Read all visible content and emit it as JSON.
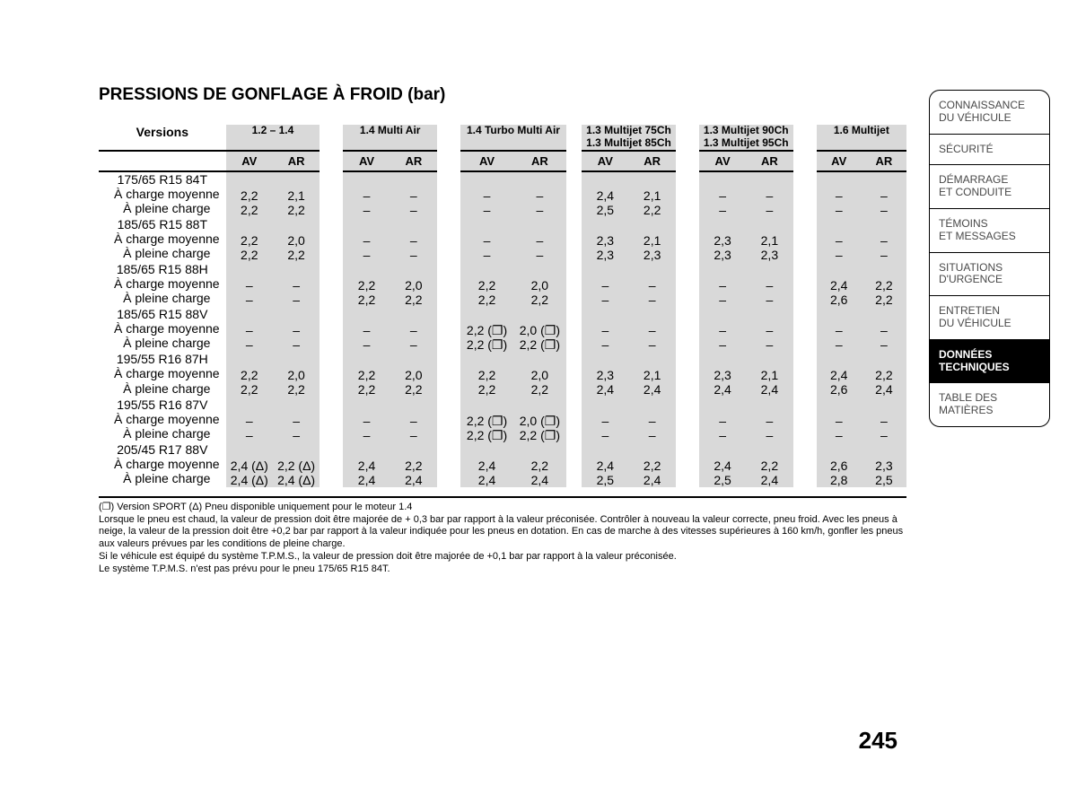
{
  "title": "PRESSIONS DE GONFLAGE À FROID (bar)",
  "versions_label": "Versions",
  "av_label": "AV",
  "ar_label": "AR",
  "engines": [
    {
      "label": "1.2 – 1.4",
      "sub": ""
    },
    {
      "label": "1.4 Multi Air",
      "sub": ""
    },
    {
      "label": "1.4 Turbo Multi Air",
      "sub": ""
    },
    {
      "label": "1.3 Multijet 75Ch",
      "sub": "1.3 Multijet 85Ch"
    },
    {
      "label": "1.3 Multijet 90Ch",
      "sub": "1.3 Multijet 95Ch"
    },
    {
      "label": "1.6 Multijet",
      "sub": ""
    }
  ],
  "row_sublabels": {
    "moy": "À charge moyenne",
    "pleine": "À pleine charge"
  },
  "tyres": [
    {
      "size": "175/65 R15 84T",
      "moy": [
        "2,2",
        "2,1",
        "–",
        "–",
        "–",
        "–",
        "2,4",
        "2,1",
        "–",
        "–",
        "–",
        "–"
      ],
      "pln": [
        "2,2",
        "2,2",
        "–",
        "–",
        "–",
        "–",
        "2,5",
        "2,2",
        "–",
        "–",
        "–",
        "–"
      ]
    },
    {
      "size": "185/65 R15 88T",
      "moy": [
        "2,2",
        "2,0",
        "–",
        "–",
        "–",
        "–",
        "2,3",
        "2,1",
        "2,3",
        "2,1",
        "–",
        "–"
      ],
      "pln": [
        "2,2",
        "2,2",
        "–",
        "–",
        "–",
        "–",
        "2,3",
        "2,3",
        "2,3",
        "2,3",
        "–",
        "–"
      ]
    },
    {
      "size": "185/65 R15 88H",
      "moy": [
        "–",
        "–",
        "2,2",
        "2,0",
        "2,2",
        "2,0",
        "–",
        "–",
        "–",
        "–",
        "2,4",
        "2,2"
      ],
      "pln": [
        "–",
        "–",
        "2,2",
        "2,2",
        "2,2",
        "2,2",
        "–",
        "–",
        "–",
        "–",
        "2,6",
        "2,2"
      ]
    },
    {
      "size": "185/65 R15 88V",
      "moy": [
        "–",
        "–",
        "–",
        "–",
        "2,2 (❐)",
        "2,0 (❐)",
        "–",
        "–",
        "–",
        "–",
        "–",
        "–"
      ],
      "pln": [
        "–",
        "–",
        "–",
        "–",
        "2,2 (❐)",
        "2,2 (❐)",
        "–",
        "–",
        "–",
        "–",
        "–",
        "–"
      ]
    },
    {
      "size": "195/55 R16 87H",
      "moy": [
        "2,2",
        "2,0",
        "2,2",
        "2,0",
        "2,2",
        "2,0",
        "2,3",
        "2,1",
        "2,3",
        "2,1",
        "2,4",
        "2,2"
      ],
      "pln": [
        "2,2",
        "2,2",
        "2,2",
        "2,2",
        "2,2",
        "2,2",
        "2,4",
        "2,4",
        "2,4",
        "2,4",
        "2,6",
        "2,4"
      ]
    },
    {
      "size": "195/55 R16 87V",
      "moy": [
        "–",
        "–",
        "–",
        "–",
        "2,2 (❐)",
        "2,0 (❐)",
        "–",
        "–",
        "–",
        "–",
        "–",
        "–"
      ],
      "pln": [
        "–",
        "–",
        "–",
        "–",
        "2,2 (❐)",
        "2,2 (❐)",
        "–",
        "–",
        "–",
        "–",
        "–",
        "–"
      ]
    },
    {
      "size": "205/45 R17 88V",
      "moy": [
        "2,4 (Δ)",
        "2,2 (Δ)",
        "2,4",
        "2,2",
        "2,4",
        "2,2",
        "2,4",
        "2,2",
        "2,4",
        "2,2",
        "2,6",
        "2,3"
      ],
      "pln": [
        "2,4 (Δ)",
        "2,4 (Δ)",
        "2,4",
        "2,4",
        "2,4",
        "2,4",
        "2,5",
        "2,4",
        "2,5",
        "2,4",
        "2,8",
        "2,5"
      ]
    }
  ],
  "footnote": {
    "l1": "(❐) Version SPORT    (Δ) Pneu disponible uniquement pour le moteur 1.4",
    "l2": "Lorsque le pneu est chaud, la valeur de pression doit être majorée de + 0,3 bar par rapport à la valeur préconisée. Contrôler à nouveau la valeur correcte, pneu froid. Avec les pneus à neige, la valeur de la pression doit être +0,2 bar par rapport à la valeur indiquée pour les pneus en dotation. En cas de marche à des vitesses supérieures à 160 km/h, gonfler les pneus aux valeurs prévues par les conditions de pleine charge.",
    "l3": "Si le véhicule est équipé du système T.P.M.S., la valeur de pression doit être majorée de +0,1 bar par rapport à la valeur préconisée.",
    "l4": "Le système T.P.M.S. n'est pas prévu pour le pneu 175/65 R15 84T."
  },
  "page_number": "245",
  "tabs": [
    {
      "l1": "CONNAISSANCE",
      "l2": "DU VÉHICULE",
      "active": false
    },
    {
      "l1": "SÉCURITÉ",
      "l2": "",
      "active": false
    },
    {
      "l1": "DÉMARRAGE",
      "l2": "ET CONDUITE",
      "active": false
    },
    {
      "l1": "TÉMOINS",
      "l2": "ET MESSAGES",
      "active": false
    },
    {
      "l1": "SITUATIONS",
      "l2": "D'URGENCE",
      "active": false
    },
    {
      "l1": "ENTRETIEN",
      "l2": "DU VÉHICULE",
      "active": false
    },
    {
      "l1": "DONNÉES",
      "l2": "TECHNIQUES",
      "active": true
    },
    {
      "l1": "TABLE DES MATIÈRES",
      "l2": "",
      "active": false
    }
  ],
  "colors": {
    "shade": "#d9d9d9",
    "text": "#000000",
    "tab_border": "#000000",
    "tab_inactive_text": "#494949"
  }
}
